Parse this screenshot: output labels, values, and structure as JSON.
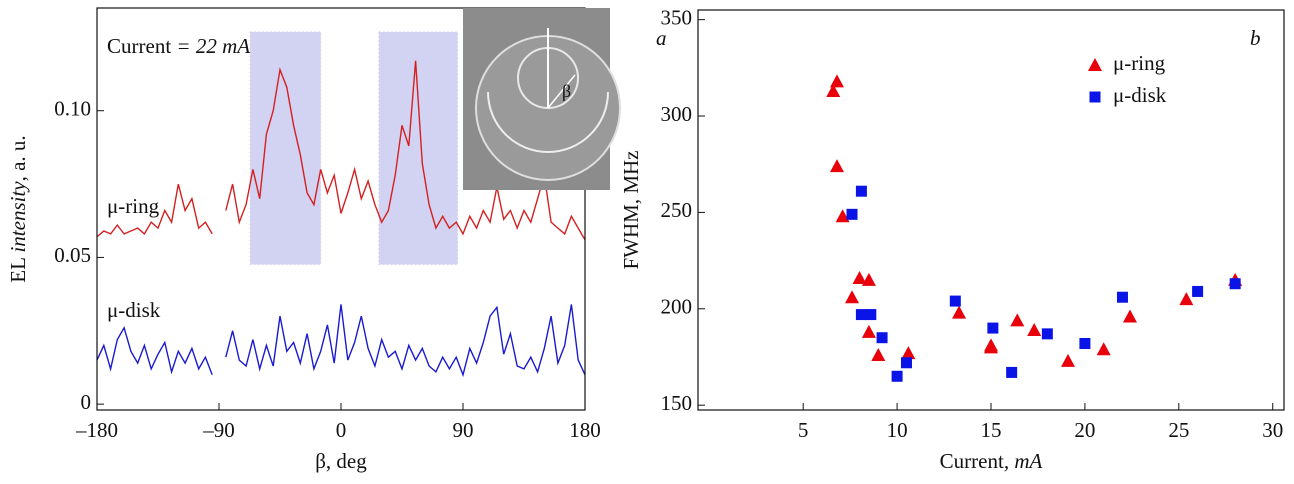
{
  "chart_data": [
    {
      "type": "line",
      "panel_label": "a",
      "annotation": [
        "Current",
        " = 22 mA"
      ],
      "xlabel": "β, deg",
      "ylabel": [
        "EL ",
        "intensity",
        ", a. u."
      ],
      "inset_label": "β",
      "xlim": [
        -180,
        180
      ],
      "xticks": [
        {
          "value": -180,
          "label": "–180"
        },
        {
          "value": -90,
          "label": "–90"
        },
        0,
        90,
        180
      ],
      "ylim": [
        -0.002,
        0.135
      ],
      "yticks": [
        0,
        0.05,
        {
          "value": 0.1,
          "label": "0.10"
        }
      ],
      "highlight_ranges": [
        [
          -67,
          -15
        ],
        [
          28,
          86
        ]
      ],
      "highlight_color": "#c8c8f0",
      "x": [
        -180,
        -175,
        -170,
        -165,
        -160,
        -155,
        -150,
        -145,
        -140,
        -135,
        -130,
        -125,
        -120,
        -115,
        -110,
        -105,
        -100,
        -95,
        -90,
        -85,
        -80,
        -75,
        -70,
        -65,
        -60,
        -55,
        -50,
        -45,
        -40,
        -35,
        -30,
        -25,
        -20,
        -15,
        -10,
        -5,
        0,
        5,
        10,
        15,
        20,
        25,
        30,
        35,
        40,
        45,
        50,
        55,
        60,
        65,
        70,
        75,
        80,
        85,
        90,
        95,
        100,
        105,
        110,
        115,
        120,
        125,
        130,
        135,
        140,
        145,
        150,
        155,
        160,
        165,
        170,
        175,
        180
      ],
      "series": [
        {
          "name": "μ-ring",
          "color": "#d42020",
          "values": [
            0.057,
            0.059,
            0.058,
            0.061,
            0.058,
            0.059,
            0.06,
            0.058,
            0.062,
            0.06,
            0.066,
            0.062,
            0.075,
            0.066,
            0.07,
            0.06,
            0.062,
            0.058,
            null,
            0.066,
            0.075,
            0.062,
            0.068,
            0.08,
            0.07,
            0.092,
            0.1,
            0.114,
            0.108,
            0.095,
            0.085,
            0.072,
            0.068,
            0.08,
            0.072,
            0.078,
            0.065,
            0.072,
            0.08,
            0.07,
            0.076,
            0.068,
            0.062,
            0.066,
            0.078,
            0.095,
            0.088,
            0.117,
            0.082,
            0.068,
            0.06,
            0.064,
            0.06,
            0.062,
            0.058,
            0.064,
            0.06,
            0.066,
            0.062,
            0.074,
            0.063,
            0.066,
            0.06,
            0.066,
            0.062,
            0.07,
            0.078,
            0.062,
            0.06,
            0.058,
            0.064,
            0.06,
            0.056
          ]
        },
        {
          "name": "μ-disk",
          "color": "#1a1ad0",
          "values": [
            0.015,
            0.02,
            0.012,
            0.022,
            0.026,
            0.018,
            0.014,
            0.02,
            0.012,
            0.017,
            0.021,
            0.011,
            0.018,
            0.014,
            0.019,
            0.012,
            0.016,
            0.01,
            null,
            0.016,
            0.025,
            0.015,
            0.013,
            0.022,
            0.012,
            0.02,
            0.013,
            0.03,
            0.018,
            0.021,
            0.014,
            0.024,
            0.012,
            0.018,
            0.027,
            0.014,
            0.034,
            0.015,
            0.021,
            0.03,
            0.019,
            0.013,
            0.022,
            0.016,
            0.018,
            0.012,
            0.02,
            0.015,
            0.019,
            0.013,
            0.011,
            0.016,
            0.012,
            0.016,
            0.01,
            0.019,
            0.014,
            0.021,
            0.03,
            0.033,
            0.017,
            0.024,
            0.013,
            0.012,
            0.016,
            0.011,
            0.019,
            0.03,
            0.014,
            0.02,
            0.034,
            0.015,
            0.01
          ]
        }
      ]
    },
    {
      "type": "scatter",
      "panel_label": "b",
      "xlabel": [
        "Current",
        ", mA"
      ],
      "ylabel": "FWHM, MHz",
      "xlim": [
        -0.6,
        30.6
      ],
      "xticks": [
        5,
        10,
        15,
        20,
        25,
        30
      ],
      "ylim": [
        147.5,
        355
      ],
      "yticks": [
        150,
        200,
        250,
        300,
        350
      ],
      "legend": "upper right",
      "series": [
        {
          "name": "μ-ring",
          "color": "#e8000b",
          "marker": "triangle",
          "x": [
            6.6,
            6.8,
            6.8,
            7.1,
            7.6,
            8.0,
            8.5,
            8.5,
            9.0,
            10.6,
            13.3,
            15.0,
            15.0,
            16.4,
            17.3,
            19.1,
            21.0,
            22.4,
            25.4,
            28.0
          ],
          "values": [
            313,
            318,
            274,
            248,
            206,
            216,
            215,
            188,
            176,
            177,
            198,
            181,
            180,
            194,
            189,
            173,
            179,
            196,
            205,
            215
          ]
        },
        {
          "name": "μ-disk",
          "color": "#0a14e6",
          "marker": "square",
          "x": [
            7.6,
            8.1,
            8.1,
            8.6,
            9.2,
            10.0,
            10.5,
            13.1,
            15.1,
            16.1,
            18.0,
            20.0,
            22.0,
            26.0,
            28.0
          ],
          "values": [
            249,
            261,
            197,
            197,
            185,
            165,
            172,
            204,
            190,
            167,
            187,
            182,
            206,
            209,
            213
          ]
        }
      ]
    }
  ]
}
